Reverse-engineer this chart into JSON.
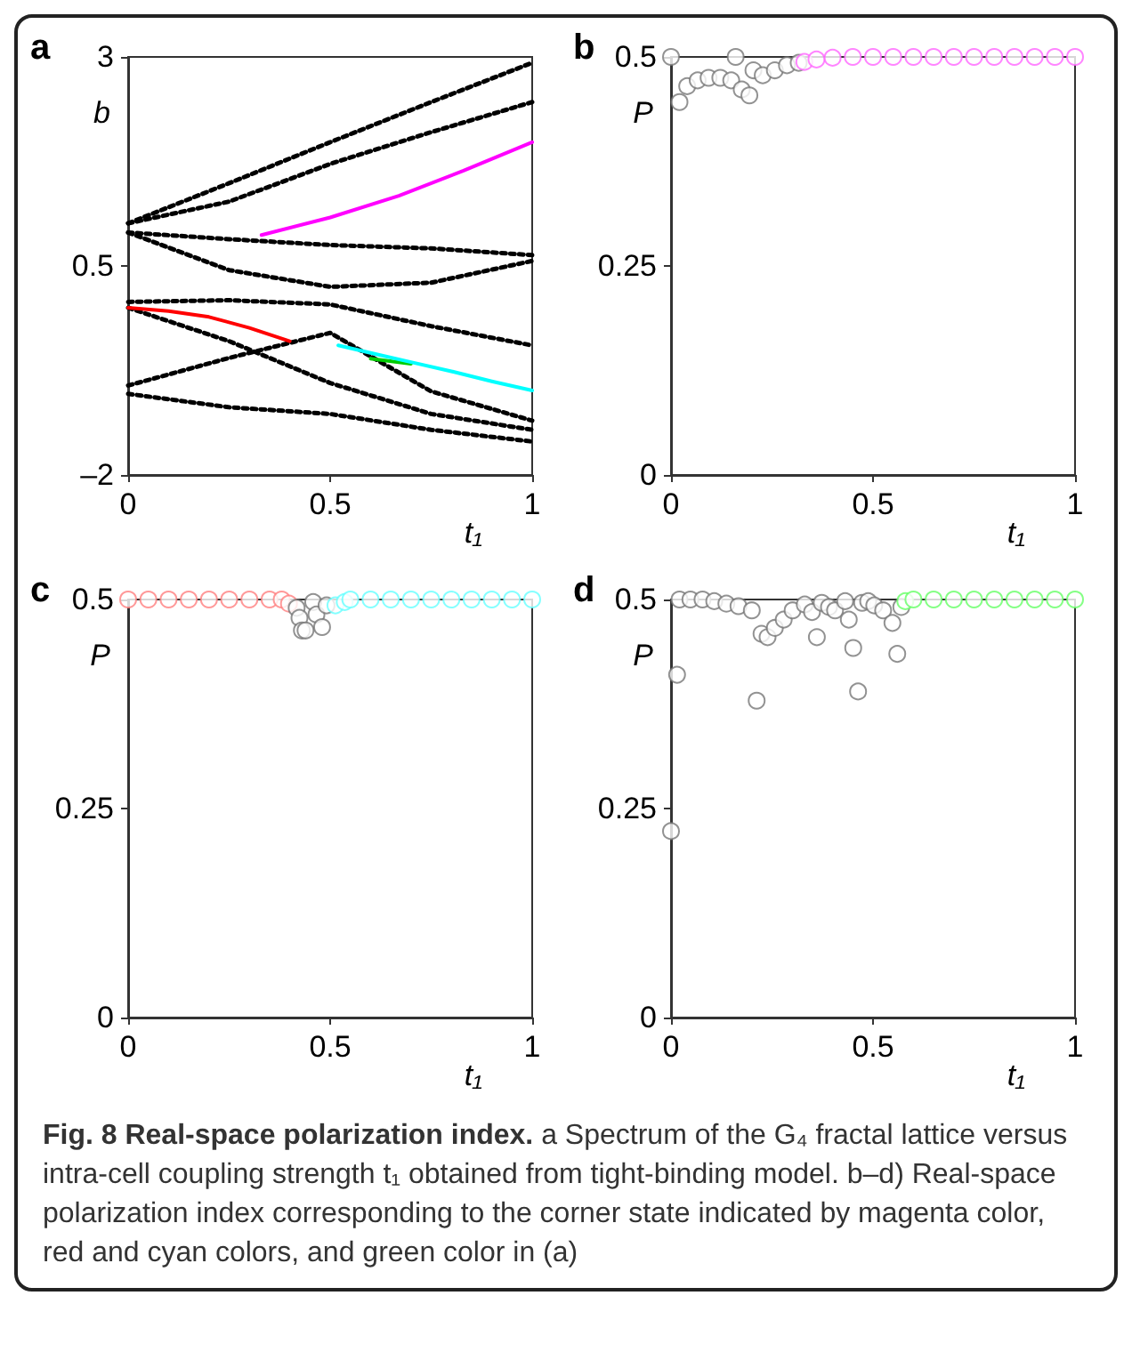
{
  "chart_data": [
    {
      "type": "line",
      "title": "a",
      "xlabel": "t₁",
      "ylabel": "b",
      "xlim": [
        0,
        1
      ],
      "xticks": [
        0,
        0.5,
        1
      ],
      "ylim": [
        -2,
        3
      ],
      "yticks": [
        {
          "value": -2,
          "label": "–2"
        },
        0.5,
        3
      ],
      "grid": false,
      "line_style": "dotted",
      "x": [
        0,
        0.25,
        0.5,
        0.75,
        1
      ],
      "series": [
        {
          "color": "#000000",
          "values": [
            1.01,
            1.49,
            1.98,
            2.46,
            2.93
          ]
        },
        {
          "color": "#000000",
          "values": [
            1.01,
            1.27,
            1.72,
            2.1,
            2.46
          ]
        },
        {
          "color": "#000000",
          "values": [
            0.9,
            0.82,
            0.75,
            0.71,
            0.63
          ]
        },
        {
          "color": "#000000",
          "values": [
            0.9,
            0.45,
            0.25,
            0.3,
            0.56
          ]
        },
        {
          "color": "#000000",
          "values": [
            0.07,
            0.09,
            0.04,
            -0.22,
            -0.45
          ]
        },
        {
          "color": "#000000",
          "values": [
            0.0,
            -0.4,
            -0.9,
            -1.27,
            -1.46
          ]
        },
        {
          "color": "#000000",
          "values": [
            -0.93,
            -0.6,
            -0.3,
            -1.0,
            -1.35
          ]
        },
        {
          "color": "#000000",
          "values": [
            -1.03,
            -1.19,
            -1.27,
            -1.46,
            -1.6
          ]
        },
        {
          "color": "#ff00ff",
          "line_style": "solid",
          "x": [
            0.33,
            0.5,
            0.67,
            0.83,
            1
          ],
          "values": [
            0.87,
            1.08,
            1.34,
            1.64,
            1.98
          ]
        },
        {
          "color": "#ff0000",
          "line_style": "solid",
          "x": [
            0,
            0.1,
            0.2,
            0.3,
            0.4
          ],
          "values": [
            0.0,
            -0.04,
            -0.11,
            -0.24,
            -0.4
          ]
        },
        {
          "color": "#00cc00",
          "line_style": "solid",
          "x": [
            0.6,
            0.7
          ],
          "values": [
            -0.61,
            -0.67
          ]
        },
        {
          "color": "#00ffff",
          "line_style": "solid",
          "x": [
            0.52,
            0.6,
            0.7,
            0.8,
            0.9,
            1
          ],
          "values": [
            -0.45,
            -0.54,
            -0.65,
            -0.76,
            -0.88,
            -0.99
          ]
        }
      ]
    },
    {
      "type": "scatter",
      "title": "b",
      "xlabel": "t₁",
      "ylabel": "P",
      "xlim": [
        0,
        1
      ],
      "xticks": [
        0,
        0.5,
        1
      ],
      "ylim": [
        0,
        0.5
      ],
      "yticks": [
        0,
        0.25,
        0.5
      ],
      "grid": false,
      "marker": "circle",
      "series": [
        {
          "color": "#777777",
          "x": [
            0,
            0.021,
            0.04,
            0.066,
            0.093,
            0.122,
            0.149,
            0.16,
            0.175,
            0.194,
            0.204,
            0.227,
            0.257,
            0.287,
            0.316
          ],
          "values": [
            0.5,
            0.446,
            0.465,
            0.472,
            0.475,
            0.475,
            0.472,
            0.5,
            0.461,
            0.454,
            0.484,
            0.478,
            0.484,
            0.49,
            0.493
          ]
        },
        {
          "color": "#ff66ff",
          "x": [
            0.33,
            0.36,
            0.4,
            0.45,
            0.5,
            0.55,
            0.6,
            0.65,
            0.7,
            0.75,
            0.8,
            0.85,
            0.9,
            0.95,
            1
          ],
          "values": [
            0.494,
            0.497,
            0.499,
            0.5,
            0.5,
            0.5,
            0.5,
            0.5,
            0.5,
            0.5,
            0.5,
            0.5,
            0.5,
            0.5,
            0.5
          ]
        }
      ]
    },
    {
      "type": "scatter",
      "title": "c",
      "xlabel": "t₁",
      "ylabel": "P",
      "xlim": [
        0,
        1
      ],
      "xticks": [
        0,
        0.5,
        1
      ],
      "ylim": [
        0,
        0.5
      ],
      "yticks": [
        0,
        0.25,
        0.5
      ],
      "grid": false,
      "marker": "circle",
      "series": [
        {
          "color": "#ff8080",
          "x": [
            0,
            0.05,
            0.1,
            0.15,
            0.2,
            0.25,
            0.3,
            0.35,
            0.38,
            0.398
          ],
          "values": [
            0.5,
            0.5,
            0.5,
            0.5,
            0.5,
            0.5,
            0.5,
            0.5,
            0.5,
            0.495
          ]
        },
        {
          "color": "#777777",
          "x": [
            0.417,
            0.424,
            0.43,
            0.439,
            0.458,
            0.466,
            0.48,
            0.491
          ],
          "values": [
            0.49,
            0.478,
            0.463,
            0.463,
            0.497,
            0.482,
            0.467,
            0.493
          ]
        },
        {
          "color": "#66ffff",
          "x": [
            0.513,
            0.536,
            0.55,
            0.6,
            0.65,
            0.7,
            0.75,
            0.8,
            0.85,
            0.9,
            0.95,
            1
          ],
          "values": [
            0.493,
            0.497,
            0.5,
            0.5,
            0.5,
            0.5,
            0.5,
            0.5,
            0.5,
            0.5,
            0.5,
            0.5
          ]
        }
      ]
    },
    {
      "type": "scatter",
      "title": "d",
      "xlabel": "t₁",
      "ylabel": "P",
      "xlim": [
        0,
        1
      ],
      "xticks": [
        0,
        0.5,
        1
      ],
      "ylim": [
        0,
        0.5
      ],
      "yticks": [
        0,
        0.25,
        0.5
      ],
      "grid": false,
      "marker": "circle",
      "series": [
        {
          "color": "#777777",
          "x": [
            0,
            0.015,
            0.021,
            0.048,
            0.078,
            0.107,
            0.137,
            0.167,
            0.2,
            0.212,
            0.224,
            0.239,
            0.257,
            0.279,
            0.301,
            0.331,
            0.349,
            0.361,
            0.373,
            0.391,
            0.406,
            0.431,
            0.44,
            0.451,
            0.463,
            0.473,
            0.488,
            0.503,
            0.525,
            0.548,
            0.56,
            0.57
          ],
          "values": [
            0.223,
            0.41,
            0.5,
            0.5,
            0.5,
            0.498,
            0.495,
            0.492,
            0.487,
            0.379,
            0.459,
            0.455,
            0.466,
            0.476,
            0.487,
            0.494,
            0.485,
            0.455,
            0.496,
            0.491,
            0.487,
            0.498,
            0.476,
            0.442,
            0.39,
            0.496,
            0.498,
            0.493,
            0.487,
            0.472,
            0.435,
            0.491
          ]
        },
        {
          "color": "#66ff66",
          "x": [
            0.58,
            0.6,
            0.65,
            0.7,
            0.75,
            0.8,
            0.85,
            0.9,
            0.95,
            1
          ],
          "values": [
            0.498,
            0.5,
            0.5,
            0.5,
            0.5,
            0.5,
            0.5,
            0.5,
            0.5,
            0.5
          ]
        }
      ]
    },
    {
      "type": "other",
      "title": "Fig. 8 Real-space polarization index.",
      "annotations": [
        "a Spectrum of the G₄ fractal lattice versus intra-cell coupling strength t₁ obtained from tight-binding model. b–d) Real-space polarization index corresponding to the corner state indicated by magenta color, red and cyan colors, and green color in (a)"
      ]
    }
  ]
}
